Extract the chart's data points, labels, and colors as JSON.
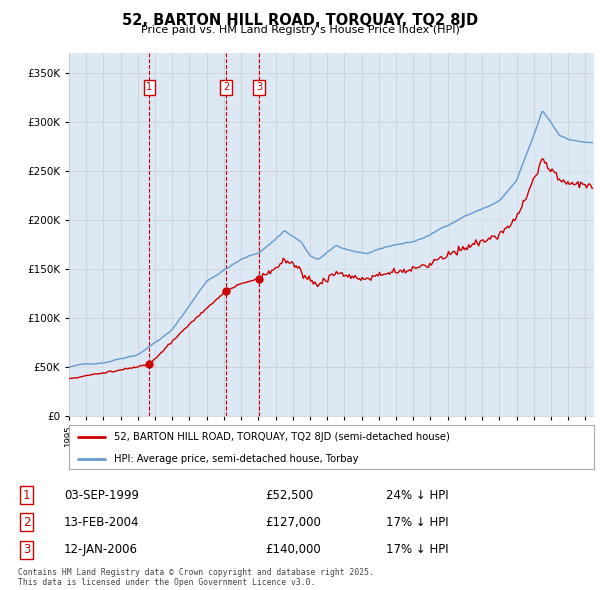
{
  "title": "52, BARTON HILL ROAD, TORQUAY, TQ2 8JD",
  "subtitle": "Price paid vs. HM Land Registry's House Price Index (HPI)",
  "legend_entry1": "52, BARTON HILL ROAD, TORQUAY, TQ2 8JD (semi-detached house)",
  "legend_entry2": "HPI: Average price, semi-detached house, Torbay",
  "transactions": [
    {
      "num": 1,
      "date": "03-SEP-1999",
      "price": 52500,
      "pct": "24% ↓ HPI",
      "year": 1999.67
    },
    {
      "num": 2,
      "date": "13-FEB-2004",
      "price": 127000,
      "pct": "17% ↓ HPI",
      "year": 2004.12
    },
    {
      "num": 3,
      "date": "12-JAN-2006",
      "price": 140000,
      "pct": "17% ↓ HPI",
      "year": 2006.04
    }
  ],
  "footnote": "Contains HM Land Registry data © Crown copyright and database right 2025.\nThis data is licensed under the Open Government Licence v3.0.",
  "red_color": "#cc0000",
  "blue_color": "#6699cc",
  "fill_color": "#dce9f5",
  "background_color": "#ffffff",
  "grid_color": "#cccccc",
  "ylim_max": 370000,
  "xlim_start": 1995.0,
  "xlim_end": 2025.5
}
